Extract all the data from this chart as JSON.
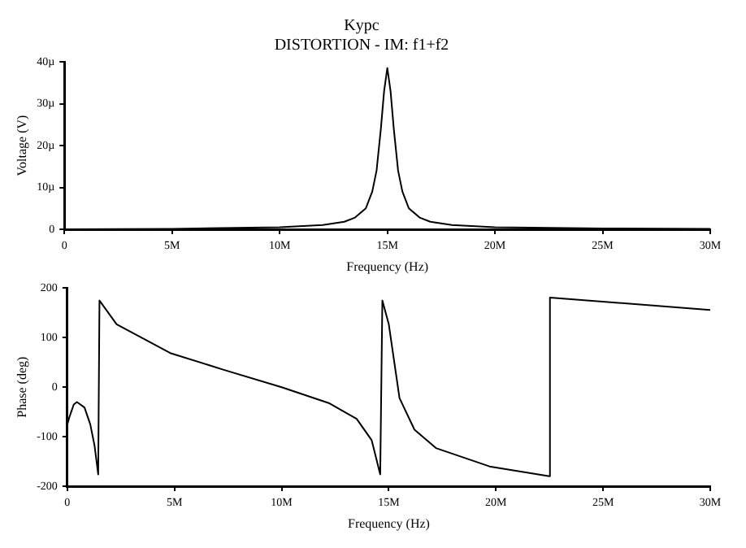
{
  "chart_data": [
    {
      "type": "line",
      "title": "Kypc",
      "subtitle": "DISTORTION - IM: f1+f2",
      "xlabel": "Frequency (Hz)",
      "ylabel": "Voltage (V)",
      "grid": false,
      "legend": false,
      "marker": "none",
      "line_style": "solid",
      "x": [
        0,
        5000000,
        10000000,
        12000000,
        13000000,
        13500000,
        14000000,
        14300000,
        14500000,
        14700000,
        14850000,
        15000000,
        15150000,
        15300000,
        15500000,
        15700000,
        16000000,
        16500000,
        17000000,
        18000000,
        20000000,
        25000000,
        30000000
      ],
      "series": [
        {
          "color": "#000000",
          "values": [
            0,
            0.1,
            0.5,
            1,
            1.8,
            2.8,
            5,
            9,
            14,
            24,
            33,
            38.5,
            33,
            24,
            14,
            9,
            5,
            2.8,
            1.8,
            1,
            0.5,
            0.2,
            0.1
          ]
        }
      ],
      "xlim": [
        0,
        30000000
      ],
      "xticks": [
        {
          "value": 0,
          "label": "0"
        },
        {
          "value": 5000000,
          "label": "5M"
        },
        {
          "value": 10000000,
          "label": "10M"
        },
        {
          "value": 15000000,
          "label": "15M"
        },
        {
          "value": 20000000,
          "label": "20M"
        },
        {
          "value": 25000000,
          "label": "25M"
        },
        {
          "value": 30000000,
          "label": "30M"
        }
      ],
      "ylim": [
        0,
        40
      ],
      "yticks": [
        0,
        {
          "value": 10,
          "label": "10µ"
        },
        {
          "value": 20,
          "label": "20µ"
        },
        {
          "value": 30,
          "label": "30µ"
        },
        {
          "value": 40,
          "label": "40µ"
        }
      ]
    },
    {
      "type": "line",
      "xlabel": "Frequency (Hz)",
      "ylabel": "Phase (deg)",
      "grid": false,
      "legend": false,
      "marker": "none",
      "line_style": "solid",
      "x": [
        0,
        100000,
        300000,
        450000,
        800000,
        1070000,
        1270000,
        1440000,
        1500000,
        2300000,
        4800000,
        7300000,
        10000000,
        12200000,
        13500000,
        14200000,
        14600000,
        14700000,
        15000000,
        15500000,
        16200000,
        17200000,
        19700000,
        22500000,
        22520000,
        30000000
      ],
      "series": [
        {
          "color": "#000000",
          "values": [
            -75,
            -60,
            -35,
            -30,
            -41,
            -75,
            -118,
            -176,
            175,
            127,
            69,
            35,
            0,
            -32,
            -64,
            -107,
            -176,
            175,
            127,
            -22,
            -86,
            -123,
            -160,
            -180,
            181,
            156
          ]
        }
      ],
      "xlim": [
        0,
        30000000
      ],
      "xticks": [
        {
          "value": 0,
          "label": "0"
        },
        {
          "value": 5000000,
          "label": "5M"
        },
        {
          "value": 10000000,
          "label": "10M"
        },
        {
          "value": 15000000,
          "label": "15M"
        },
        {
          "value": 20000000,
          "label": "20M"
        },
        {
          "value": 25000000,
          "label": "25M"
        },
        {
          "value": 30000000,
          "label": "30M"
        }
      ],
      "ylim": [
        -200,
        200
      ],
      "yticks": [
        -200,
        -100,
        0,
        100,
        200
      ]
    }
  ]
}
